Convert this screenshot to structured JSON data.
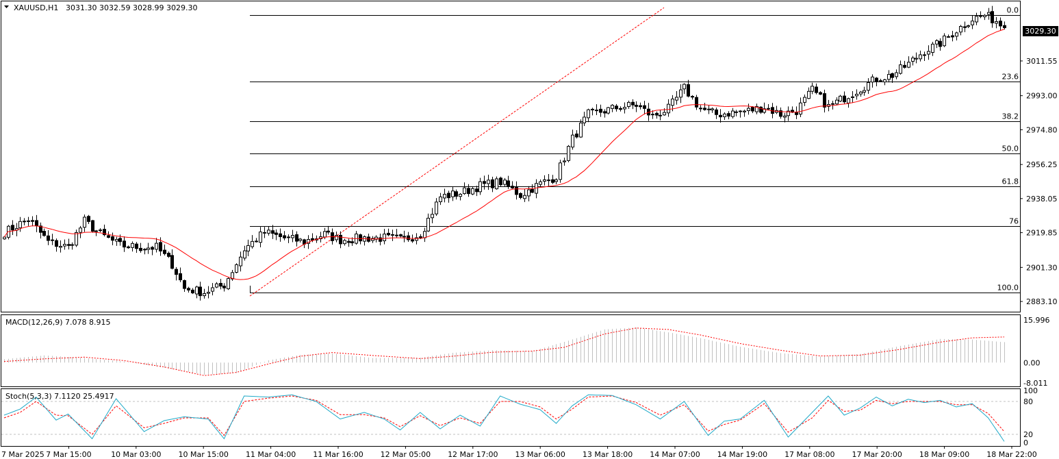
{
  "header": {
    "symbol_label": "XAUUSD,H1",
    "ohlc": "3031.30 3032.59 3028.99 3029.30"
  },
  "current_price": "3029.30",
  "colors": {
    "candle_up": "#ffffff",
    "candle_down": "#000000",
    "ma": "#ff0000",
    "macd_signal": "#ff0000",
    "macd_hist": "#c0c0c0",
    "stoch_main": "#1fa9c8",
    "stoch_signal": "#ff0000",
    "fib": "#000000"
  },
  "chart_data": [
    {
      "type": "candlestick",
      "title": "XAUUSD,H1 3031.30 3032.59 3028.99 3029.30",
      "y_ticks": [
        "3011.55",
        "2993.00",
        "2974.80",
        "2956.25",
        "2938.05",
        "2919.85",
        "2901.30",
        "2883.10"
      ],
      "ylim": [
        2878,
        3043
      ],
      "x_ticks": [
        "7 Mar 2025",
        "7 Mar 15:00",
        "10 Mar 03:00",
        "10 Mar 15:00",
        "11 Mar 04:00",
        "11 Mar 16:00",
        "12 Mar 05:00",
        "12 Mar 17:00",
        "13 Mar 06:00",
        "13 Mar 18:00",
        "14 Mar 07:00",
        "14 Mar 19:00",
        "17 Mar 08:00",
        "17 Mar 20:00",
        "18 Mar 09:00",
        "18 Mar 22:00"
      ],
      "fibonacci": [
        {
          "label": "0.0",
          "price": 3036.0
        },
        {
          "label": "23.6",
          "price": 3000.6
        },
        {
          "label": "38.2",
          "price": 2979.4
        },
        {
          "label": "50.0",
          "price": 2962.0
        },
        {
          "label": "61.8",
          "price": 2944.6
        },
        {
          "label": "76",
          "price": 2923.4
        },
        {
          "label": "100.0",
          "price": 2888.0
        }
      ],
      "anchors": [
        [
          0,
          2920
        ],
        [
          6,
          2927
        ],
        [
          11,
          2915
        ],
        [
          16,
          2912
        ],
        [
          20,
          2926
        ],
        [
          24,
          2919
        ],
        [
          29,
          2913
        ],
        [
          34,
          2912
        ],
        [
          38,
          2912
        ],
        [
          42,
          2903
        ],
        [
          45,
          2890
        ],
        [
          50,
          2888
        ],
        [
          55,
          2892
        ],
        [
          60,
          2911
        ],
        [
          65,
          2920
        ],
        [
          70,
          2917
        ],
        [
          75,
          2915
        ],
        [
          80,
          2919
        ],
        [
          84,
          2916
        ],
        [
          90,
          2917
        ],
        [
          95,
          2917
        ],
        [
          99,
          2916
        ],
        [
          104,
          2919
        ],
        [
          109,
          2939
        ],
        [
          114,
          2941
        ],
        [
          119,
          2945
        ],
        [
          124,
          2947
        ],
        [
          129,
          2940
        ],
        [
          134,
          2946
        ],
        [
          138,
          2950
        ],
        [
          142,
          2970
        ],
        [
          146,
          2983
        ],
        [
          150,
          2985
        ],
        [
          154,
          2987
        ],
        [
          158,
          2988
        ],
        [
          162,
          2982
        ],
        [
          166,
          2986
        ],
        [
          170,
          2997
        ],
        [
          174,
          2986
        ],
        [
          178,
          2983
        ],
        [
          182,
          2984
        ],
        [
          186,
          2985
        ],
        [
          190,
          2987
        ],
        [
          194,
          2983
        ],
        [
          198,
          2985
        ],
        [
          202,
          2996
        ],
        [
          206,
          2987
        ],
        [
          210,
          2992
        ],
        [
          214,
          2997
        ],
        [
          218,
          3002
        ],
        [
          222,
          3004
        ],
        [
          226,
          3010
        ],
        [
          230,
          3017
        ],
        [
          234,
          3021
        ],
        [
          238,
          3028
        ],
        [
          242,
          3034
        ],
        [
          245,
          3036
        ],
        [
          248,
          3033
        ],
        [
          250,
          3029.3
        ]
      ],
      "candles_count": 251,
      "series": [
        {
          "name": "MA",
          "values": "computed moving average of closes"
        }
      ]
    },
    {
      "type": "histogram",
      "title": "MACD(12,26,9) 7.078 8.915",
      "y_ticks": [
        "15.996",
        "0.00",
        "-8.011"
      ],
      "ylim": [
        -8.011,
        15.996
      ],
      "hist_anchors": [
        [
          0,
          1.2
        ],
        [
          10,
          2.5
        ],
        [
          20,
          1.6
        ],
        [
          30,
          0.4
        ],
        [
          40,
          -1.8
        ],
        [
          50,
          -4.2
        ],
        [
          58,
          -3.6
        ],
        [
          66,
          0.8
        ],
        [
          74,
          2.7
        ],
        [
          82,
          3.2
        ],
        [
          92,
          1.6
        ],
        [
          104,
          1.7
        ],
        [
          112,
          3.4
        ],
        [
          122,
          4.3
        ],
        [
          132,
          4.0
        ],
        [
          140,
          7.2
        ],
        [
          150,
          11.5
        ],
        [
          158,
          12.2
        ],
        [
          166,
          10.5
        ],
        [
          174,
          8.5
        ],
        [
          184,
          5.5
        ],
        [
          194,
          3.3
        ],
        [
          204,
          2.1
        ],
        [
          214,
          3.0
        ],
        [
          224,
          5.8
        ],
        [
          234,
          8.2
        ],
        [
          242,
          8.0
        ],
        [
          250,
          7.1
        ]
      ],
      "signal_anchors": [
        [
          0,
          0.4
        ],
        [
          10,
          1.3
        ],
        [
          20,
          1.9
        ],
        [
          30,
          0.7
        ],
        [
          40,
          -1.5
        ],
        [
          50,
          -4.5
        ],
        [
          58,
          -3.4
        ],
        [
          66,
          -0.5
        ],
        [
          74,
          2.2
        ],
        [
          82,
          3.5
        ],
        [
          92,
          2.5
        ],
        [
          104,
          1.4
        ],
        [
          112,
          2.2
        ],
        [
          122,
          3.6
        ],
        [
          132,
          4.0
        ],
        [
          140,
          5.3
        ],
        [
          150,
          9.9
        ],
        [
          158,
          12.0
        ],
        [
          166,
          11.5
        ],
        [
          174,
          9.6
        ],
        [
          184,
          6.6
        ],
        [
          194,
          4.3
        ],
        [
          204,
          2.3
        ],
        [
          214,
          2.6
        ],
        [
          224,
          4.6
        ],
        [
          234,
          7.1
        ],
        [
          242,
          8.6
        ],
        [
          250,
          8.9
        ]
      ]
    },
    {
      "type": "line",
      "title": "Stoch(5,3,3) 7.1120 25.4917",
      "y_ticks": [
        "100",
        "80",
        "20",
        "0"
      ],
      "ylim": [
        0,
        100
      ],
      "levels": [
        80,
        20
      ],
      "main_anchors": [
        [
          0,
          55
        ],
        [
          4,
          66
        ],
        [
          8,
          88
        ],
        [
          13,
          46
        ],
        [
          16,
          57
        ],
        [
          22,
          12
        ],
        [
          28,
          85
        ],
        [
          35,
          25
        ],
        [
          40,
          45
        ],
        [
          45,
          52
        ],
        [
          51,
          48
        ],
        [
          55,
          12
        ],
        [
          60,
          90
        ],
        [
          66,
          88
        ],
        [
          72,
          92
        ],
        [
          78,
          80
        ],
        [
          84,
          48
        ],
        [
          90,
          60
        ],
        [
          95,
          48
        ],
        [
          99,
          28
        ],
        [
          104,
          60
        ],
        [
          109,
          30
        ],
        [
          114,
          55
        ],
        [
          119,
          35
        ],
        [
          124,
          90
        ],
        [
          129,
          75
        ],
        [
          134,
          65
        ],
        [
          138,
          40
        ],
        [
          142,
          72
        ],
        [
          146,
          92
        ],
        [
          152,
          91
        ],
        [
          158,
          74
        ],
        [
          164,
          48
        ],
        [
          170,
          80
        ],
        [
          176,
          18
        ],
        [
          180,
          44
        ],
        [
          184,
          48
        ],
        [
          190,
          82
        ],
        [
          196,
          15
        ],
        [
          202,
          60
        ],
        [
          206,
          90
        ],
        [
          210,
          55
        ],
        [
          214,
          68
        ],
        [
          218,
          88
        ],
        [
          222,
          72
        ],
        [
          226,
          84
        ],
        [
          230,
          78
        ],
        [
          234,
          82
        ],
        [
          238,
          70
        ],
        [
          242,
          76
        ],
        [
          246,
          50
        ],
        [
          250,
          7
        ]
      ],
      "signal_anchors": [
        [
          0,
          50
        ],
        [
          4,
          60
        ],
        [
          8,
          80
        ],
        [
          13,
          55
        ],
        [
          16,
          54
        ],
        [
          22,
          20
        ],
        [
          28,
          72
        ],
        [
          35,
          32
        ],
        [
          40,
          40
        ],
        [
          45,
          50
        ],
        [
          51,
          50
        ],
        [
          55,
          18
        ],
        [
          60,
          80
        ],
        [
          66,
          86
        ],
        [
          72,
          90
        ],
        [
          78,
          82
        ],
        [
          84,
          56
        ],
        [
          90,
          56
        ],
        [
          95,
          50
        ],
        [
          99,
          34
        ],
        [
          104,
          54
        ],
        [
          109,
          36
        ],
        [
          114,
          50
        ],
        [
          119,
          40
        ],
        [
          124,
          80
        ],
        [
          129,
          80
        ],
        [
          134,
          70
        ],
        [
          138,
          48
        ],
        [
          142,
          66
        ],
        [
          146,
          88
        ],
        [
          152,
          90
        ],
        [
          158,
          78
        ],
        [
          164,
          55
        ],
        [
          170,
          74
        ],
        [
          176,
          26
        ],
        [
          180,
          38
        ],
        [
          184,
          46
        ],
        [
          190,
          76
        ],
        [
          196,
          24
        ],
        [
          202,
          50
        ],
        [
          206,
          82
        ],
        [
          210,
          62
        ],
        [
          214,
          64
        ],
        [
          218,
          82
        ],
        [
          222,
          76
        ],
        [
          226,
          80
        ],
        [
          230,
          80
        ],
        [
          234,
          80
        ],
        [
          238,
          74
        ],
        [
          242,
          74
        ],
        [
          246,
          58
        ],
        [
          250,
          25
        ]
      ]
    }
  ]
}
